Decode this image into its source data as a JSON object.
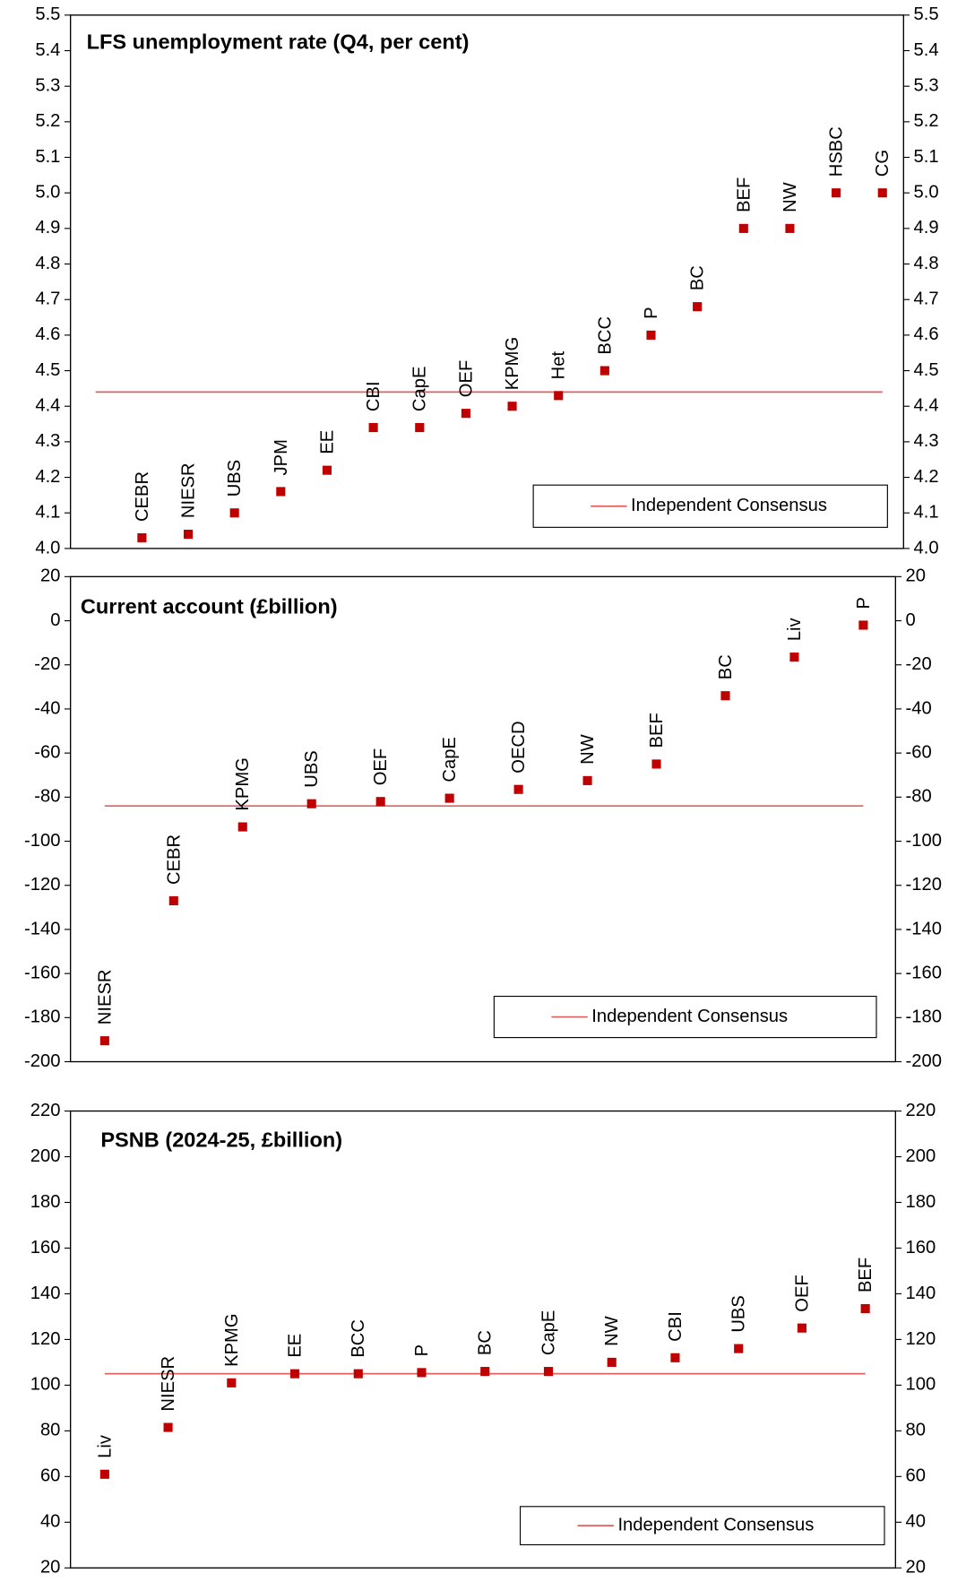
{
  "chart_data": [
    {
      "type": "dot",
      "title": "LFS unemployment rate (Q4, per cent)",
      "categories": [
        "CEBR",
        "NIESR",
        "UBS",
        "JPM",
        "EE",
        "CBI",
        "CapE",
        "OEF",
        "KPMG",
        "Het",
        "BCC",
        "P",
        "BC",
        "BEF",
        "NW",
        "HSBC",
        "CG"
      ],
      "values": [
        4.03,
        4.04,
        4.1,
        4.16,
        4.22,
        4.34,
        4.34,
        4.38,
        4.4,
        4.43,
        4.5,
        4.6,
        4.68,
        4.9,
        4.9,
        5.0,
        5.0
      ],
      "color": "#c00000",
      "consensus": {
        "name": "Independent Consensus",
        "value": 4.44,
        "color": "#e06060"
      },
      "ylim": [
        4.0,
        5.5
      ],
      "yticks": [
        {
          "value": 4.0,
          "label": "4.0"
        },
        4.1,
        4.2,
        4.3,
        4.4,
        4.5,
        4.6,
        4.7,
        4.8,
        4.9,
        {
          "value": 5.0,
          "label": "5.0"
        },
        5.1,
        5.2,
        5.3,
        5.4,
        5.5
      ]
    },
    {
      "type": "dot",
      "title": "Current account (£billion)",
      "categories": [
        "NIESR",
        "CEBR",
        "KPMG",
        "UBS",
        "OEF",
        "CapE",
        "OECD",
        "NW",
        "BEF",
        "BC",
        "Liv",
        "P"
      ],
      "values": [
        -190.5,
        -127,
        -93.5,
        -83,
        -82,
        -80.5,
        -76.5,
        -72.5,
        -65,
        -34,
        -16.5,
        -2
      ],
      "color": "#c00000",
      "consensus": {
        "name": "Independent Consensus",
        "value": -84,
        "color": "#e06060"
      },
      "ylim": [
        -200,
        20
      ],
      "yticks": [
        -200,
        -180,
        -160,
        -140,
        -120,
        -100,
        -80,
        -60,
        -40,
        -20,
        0,
        20
      ]
    },
    {
      "type": "dot",
      "title": "PSNB (2024-25, £billion)",
      "categories": [
        "Liv",
        "NIESR",
        "KPMG",
        "EE",
        "BCC",
        "P",
        "BC",
        "CapE",
        "NW",
        "CBI",
        "UBS",
        "OEF",
        "BEF"
      ],
      "values": [
        61,
        81.5,
        101,
        105,
        105,
        105.5,
        106,
        106,
        110,
        112,
        116,
        125,
        133.5
      ],
      "color": "#c00000",
      "consensus": {
        "name": "Independent Consensus",
        "value": 105,
        "color": "#e06060"
      },
      "ylim": [
        20,
        220
      ],
      "yticks": [
        20,
        40,
        60,
        80,
        100,
        120,
        140,
        160,
        180,
        200,
        220
      ]
    }
  ]
}
